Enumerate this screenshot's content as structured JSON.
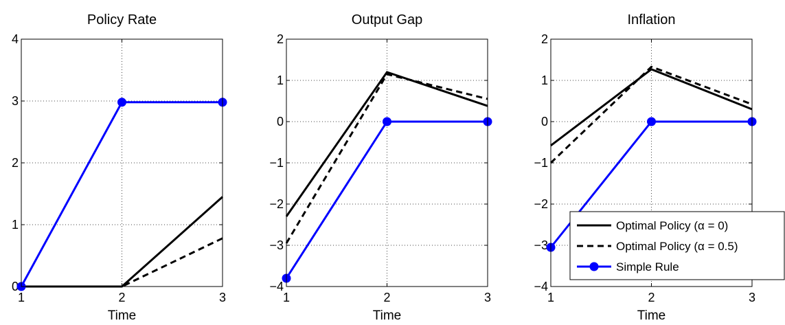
{
  "chart_data": [
    {
      "type": "line",
      "title": "Policy Rate",
      "xlabel": "Time",
      "ylabel": "",
      "x": [
        1,
        2,
        3
      ],
      "xlim": [
        1,
        3
      ],
      "ylim": [
        0,
        4
      ],
      "xticks": [
        "1",
        "2",
        "3"
      ],
      "yticks": [
        "0",
        "1",
        "2",
        "3",
        "4"
      ],
      "grid": true,
      "series": [
        {
          "name": "Optimal Policy (α = 0)",
          "values": [
            0,
            0,
            1.45
          ]
        },
        {
          "name": "Optimal Policy (α = 0.5)",
          "values": [
            0,
            0,
            0.78
          ]
        },
        {
          "name": "Simple Rule",
          "values": [
            0,
            2.98,
            2.98
          ]
        }
      ]
    },
    {
      "type": "line",
      "title": "Output Gap",
      "xlabel": "Time",
      "ylabel": "",
      "x": [
        1,
        2,
        3
      ],
      "xlim": [
        1,
        3
      ],
      "ylim": [
        -4,
        2
      ],
      "xticks": [
        "1",
        "2",
        "3"
      ],
      "yticks": [
        "−4",
        "−3",
        "−2",
        "−1",
        "0",
        "1",
        "2"
      ],
      "grid": true,
      "series": [
        {
          "name": "Optimal Policy (α = 0)",
          "values": [
            -2.3,
            1.2,
            0.38
          ]
        },
        {
          "name": "Optimal Policy (α = 0.5)",
          "values": [
            -2.95,
            1.15,
            0.55
          ]
        },
        {
          "name": "Simple Rule",
          "values": [
            -3.8,
            0,
            0
          ]
        }
      ]
    },
    {
      "type": "line",
      "title": "Inflation",
      "xlabel": "Time",
      "ylabel": "",
      "x": [
        1,
        2,
        3
      ],
      "xlim": [
        1,
        3
      ],
      "ylim": [
        -4,
        2
      ],
      "xticks": [
        "1",
        "2",
        "3"
      ],
      "yticks": [
        "−4",
        "−3",
        "−2",
        "−1",
        "0",
        "1",
        "2"
      ],
      "grid": true,
      "legend_position": "bottom-right",
      "series": [
        {
          "name": "Optimal Policy (α = 0)",
          "values": [
            -0.58,
            1.27,
            0.3
          ]
        },
        {
          "name": "Optimal Policy (α = 0.5)",
          "values": [
            -1.0,
            1.33,
            0.42
          ]
        },
        {
          "name": "Simple Rule",
          "values": [
            -3.05,
            0,
            0
          ]
        }
      ]
    }
  ],
  "legend": {
    "items": [
      {
        "label": "Optimal Policy (α = 0)",
        "style": "solid",
        "color": "#000000"
      },
      {
        "label": "Optimal Policy (α = 0.5)",
        "style": "dashed",
        "color": "#000000"
      },
      {
        "label": "Simple Rule",
        "style": "solid-marker",
        "color": "#0000ff"
      }
    ]
  },
  "colors": {
    "optimal": "#000000",
    "simple_rule": "#0000ff"
  }
}
